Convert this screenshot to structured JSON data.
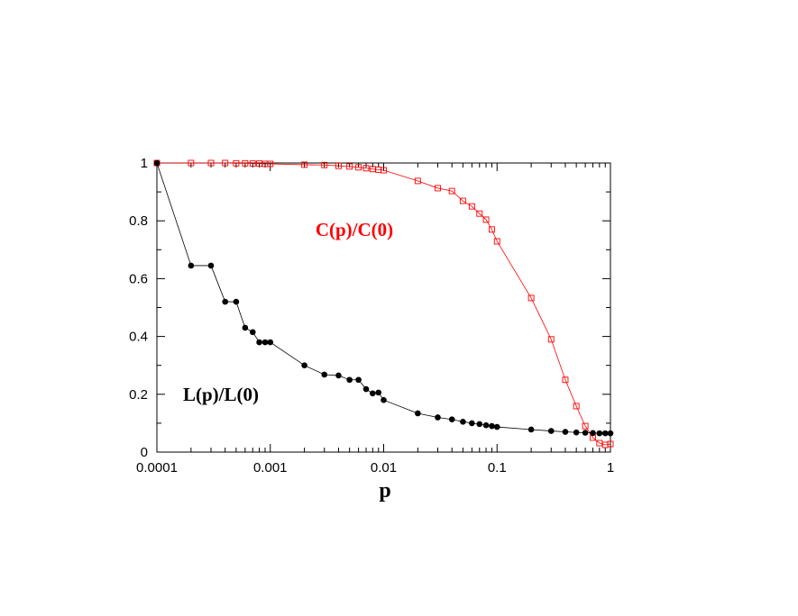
{
  "chart_data": {
    "type": "line",
    "x_label": "p",
    "x_log": true,
    "xlim": [
      0.0001,
      1
    ],
    "xticks": [
      0.0001,
      0.001,
      0.01,
      0.1,
      1
    ],
    "ylim": [
      0,
      1
    ],
    "yticks": [
      0,
      0.2,
      0.4,
      0.6,
      0.8,
      1
    ],
    "x": [
      0.0001,
      0.0002,
      0.0003,
      0.0004,
      0.0005,
      0.0006,
      0.0007,
      0.0008,
      0.0009,
      0.001,
      0.002,
      0.003,
      0.004,
      0.005,
      0.006,
      0.007,
      0.008,
      0.009,
      0.01,
      0.02,
      0.03,
      0.04,
      0.05,
      0.06,
      0.07,
      0.08,
      0.09,
      0.1,
      0.2,
      0.3,
      0.4,
      0.5,
      0.6,
      0.7,
      0.8,
      0.9,
      1
    ],
    "series": [
      {
        "name": "C(p)/C(0)",
        "color": "#ff0000",
        "marker": "square",
        "values": [
          1,
          1,
          1,
          1,
          0.999,
          0.999,
          0.998,
          0.998,
          0.997,
          0.997,
          0.994,
          0.993,
          0.99,
          0.988,
          0.985,
          0.982,
          0.979,
          0.977,
          0.975,
          0.938,
          0.913,
          0.903,
          0.869,
          0.85,
          0.825,
          0.804,
          0.77,
          0.729,
          0.533,
          0.39,
          0.25,
          0.159,
          0.09,
          0.05,
          0.031,
          0.025,
          0.028
        ]
      },
      {
        "name": "L(p)/L(0)",
        "color": "#000000",
        "marker": "circle",
        "values": [
          1,
          0.645,
          0.645,
          0.52,
          0.52,
          0.43,
          0.415,
          0.38,
          0.38,
          0.38,
          0.3,
          0.268,
          0.265,
          0.25,
          0.25,
          0.218,
          0.203,
          0.206,
          0.18,
          0.134,
          0.12,
          0.113,
          0.105,
          0.1,
          0.097,
          0.093,
          0.09,
          0.087,
          0.078,
          0.073,
          0.07,
          0.068,
          0.067,
          0.066,
          0.065,
          0.065,
          0.065
        ]
      }
    ]
  }
}
